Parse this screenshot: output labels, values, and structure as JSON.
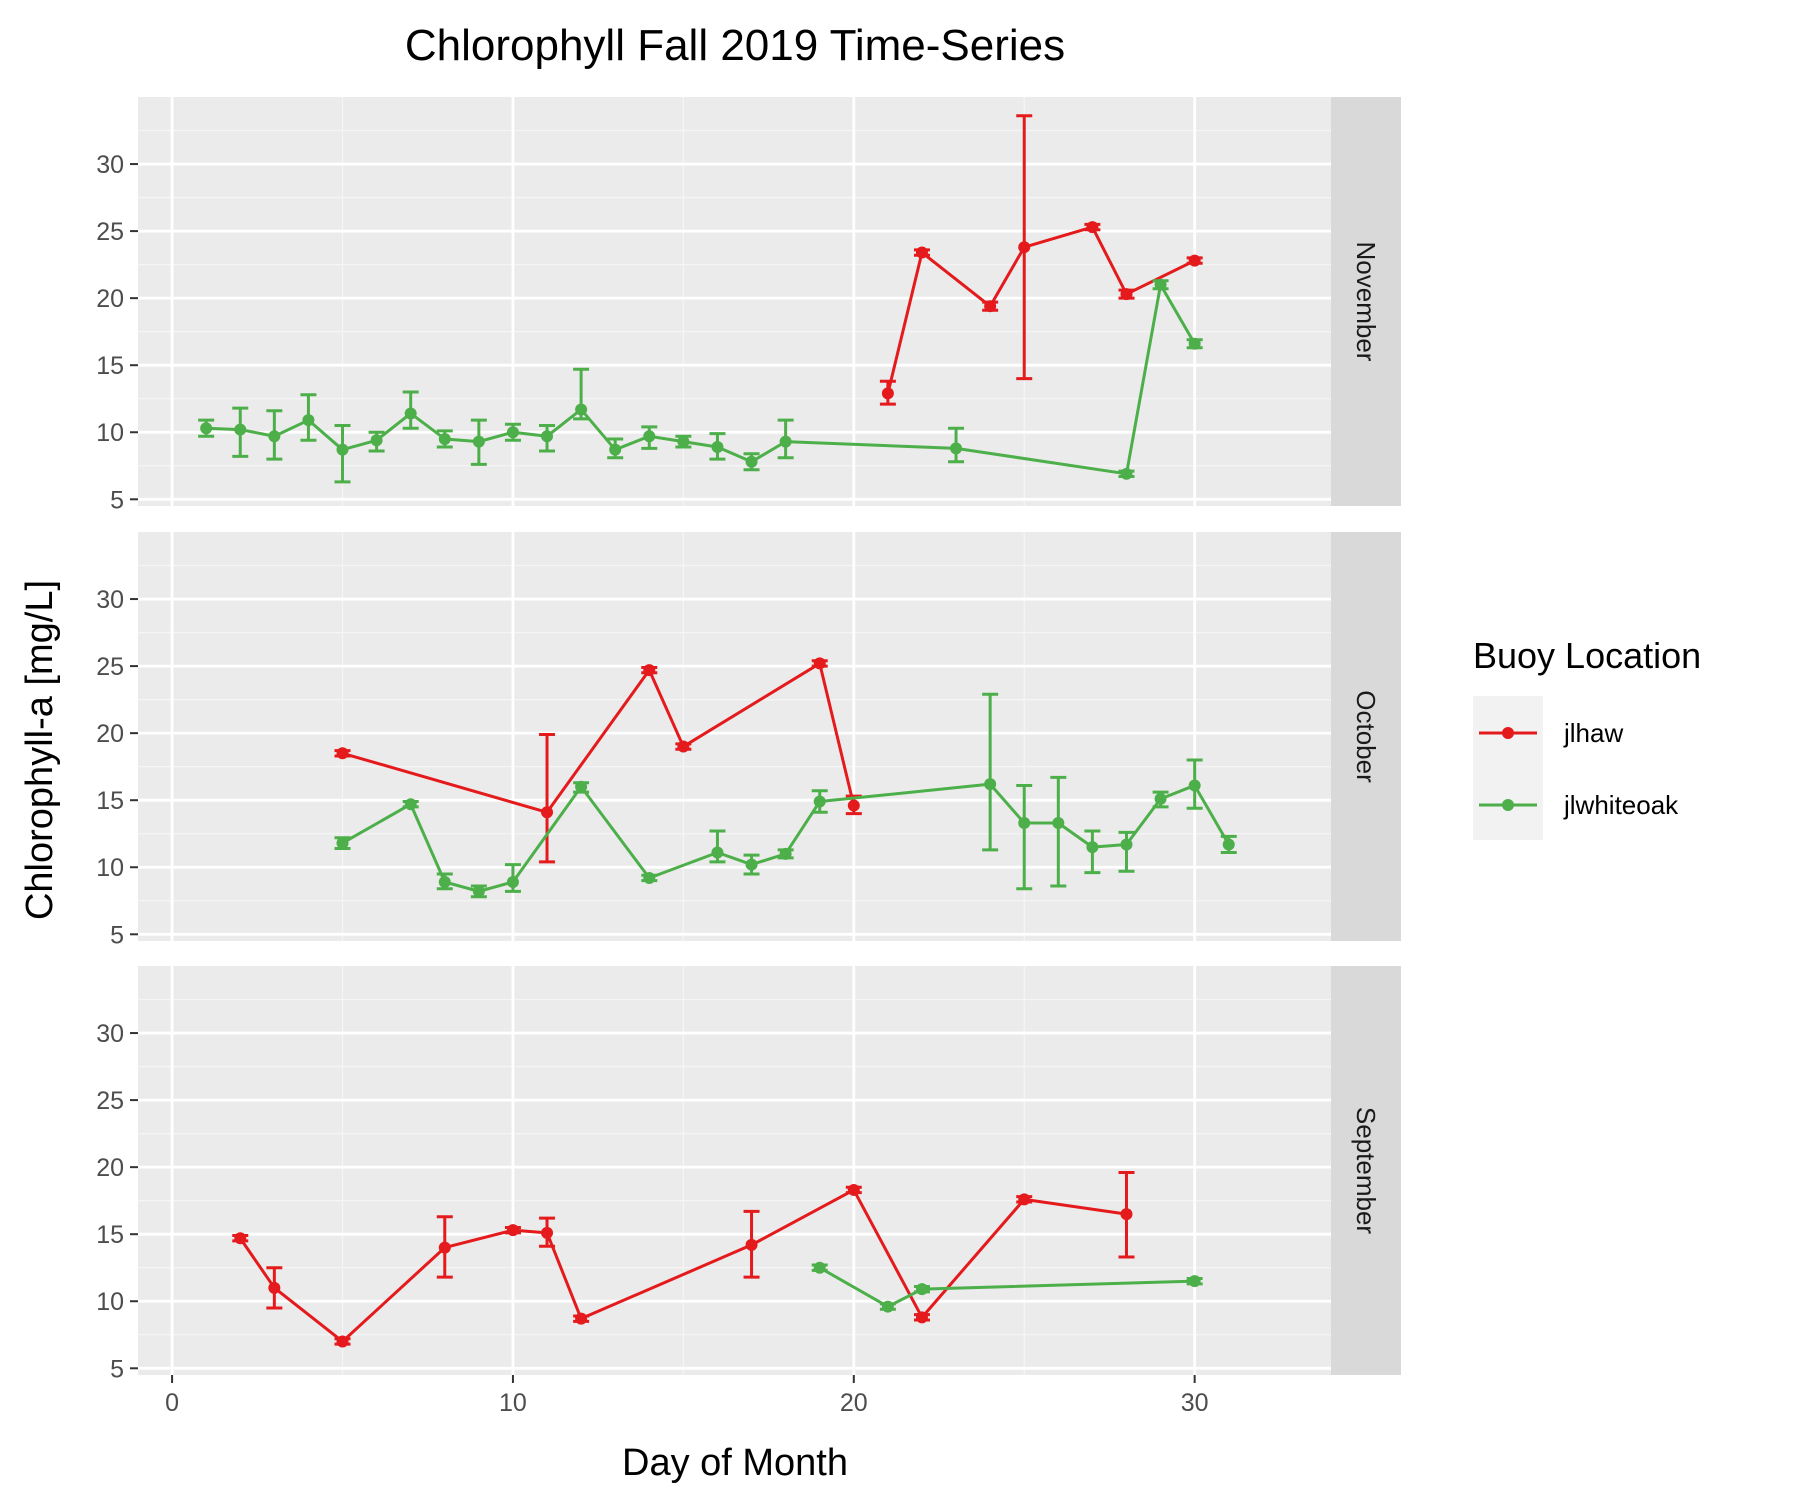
{
  "chart_data": {
    "type": "line",
    "title": "Chlorophyll Fall 2019 Time-Series",
    "xlabel": "Day of Month",
    "ylabel": "Chlorophyll-a [mg/L]",
    "xlim": [
      -1,
      34
    ],
    "ylim": [
      4.5,
      35
    ],
    "x_ticks": [
      0,
      10,
      20,
      30
    ],
    "y_ticks": [
      5,
      10,
      15,
      20,
      25,
      30
    ],
    "grid": true,
    "legend": {
      "title": "Buoy Location",
      "position": "right"
    },
    "series_meta": [
      {
        "name": "jlhaw",
        "color": "#e41a1c"
      },
      {
        "name": "jlwhiteoak",
        "color": "#4daf4a"
      }
    ],
    "panels": [
      {
        "label": "November",
        "series": [
          {
            "name": "jlhaw",
            "points": [
              {
                "x": 21,
                "y": 12.9,
                "lo": 12.1,
                "hi": 13.8
              },
              {
                "x": 22,
                "y": 23.4,
                "lo": 23.2,
                "hi": 23.6
              },
              {
                "x": 24,
                "y": 19.4,
                "lo": 19.1,
                "hi": 19.7
              },
              {
                "x": 25,
                "y": 23.8,
                "lo": 14.0,
                "hi": 33.6
              },
              {
                "x": 27,
                "y": 25.3,
                "lo": 25.1,
                "hi": 25.5
              },
              {
                "x": 28,
                "y": 20.3,
                "lo": 20.0,
                "hi": 20.6
              },
              {
                "x": 30,
                "y": 22.8,
                "lo": 22.6,
                "hi": 23.0
              }
            ]
          },
          {
            "name": "jlwhiteoak",
            "points": [
              {
                "x": 1,
                "y": 10.3,
                "lo": 9.7,
                "hi": 10.9
              },
              {
                "x": 2,
                "y": 10.2,
                "lo": 8.2,
                "hi": 11.8
              },
              {
                "x": 3,
                "y": 9.7,
                "lo": 8.0,
                "hi": 11.6
              },
              {
                "x": 4,
                "y": 10.9,
                "lo": 9.4,
                "hi": 12.8
              },
              {
                "x": 5,
                "y": 8.7,
                "lo": 6.3,
                "hi": 10.5
              },
              {
                "x": 6,
                "y": 9.4,
                "lo": 8.6,
                "hi": 10.0
              },
              {
                "x": 7,
                "y": 11.4,
                "lo": 10.3,
                "hi": 13.0
              },
              {
                "x": 8,
                "y": 9.5,
                "lo": 8.9,
                "hi": 10.1
              },
              {
                "x": 9,
                "y": 9.3,
                "lo": 7.6,
                "hi": 10.9
              },
              {
                "x": 10,
                "y": 10.0,
                "lo": 9.4,
                "hi": 10.6
              },
              {
                "x": 11,
                "y": 9.7,
                "lo": 8.6,
                "hi": 10.5
              },
              {
                "x": 12,
                "y": 11.7,
                "lo": 11.0,
                "hi": 14.7
              },
              {
                "x": 13,
                "y": 8.7,
                "lo": 8.1,
                "hi": 9.5
              },
              {
                "x": 14,
                "y": 9.7,
                "lo": 8.8,
                "hi": 10.4
              },
              {
                "x": 15,
                "y": 9.3,
                "lo": 8.9,
                "hi": 9.7
              },
              {
                "x": 16,
                "y": 8.9,
                "lo": 8.0,
                "hi": 9.9
              },
              {
                "x": 17,
                "y": 7.8,
                "lo": 7.2,
                "hi": 8.4
              },
              {
                "x": 18,
                "y": 9.3,
                "lo": 8.1,
                "hi": 10.9
              },
              {
                "x": 23,
                "y": 8.8,
                "lo": 7.8,
                "hi": 10.3
              },
              {
                "x": 28,
                "y": 6.9,
                "lo": 6.7,
                "hi": 7.1
              },
              {
                "x": 29,
                "y": 21.0,
                "lo": 20.7,
                "hi": 21.3
              },
              {
                "x": 30,
                "y": 16.6,
                "lo": 16.3,
                "hi": 16.9
              }
            ]
          }
        ]
      },
      {
        "label": "October",
        "series": [
          {
            "name": "jlhaw",
            "points": [
              {
                "x": 5,
                "y": 18.5,
                "lo": 18.3,
                "hi": 18.7
              },
              {
                "x": 11,
                "y": 14.1,
                "lo": 10.4,
                "hi": 19.9
              },
              {
                "x": 14,
                "y": 24.7,
                "lo": 24.5,
                "hi": 24.9
              },
              {
                "x": 15,
                "y": 19.0,
                "lo": 18.8,
                "hi": 19.2
              },
              {
                "x": 19,
                "y": 25.2,
                "lo": 25.0,
                "hi": 25.4
              },
              {
                "x": 20,
                "y": 14.6,
                "lo": 14.0,
                "hi": 15.3
              }
            ]
          },
          {
            "name": "jlwhiteoak",
            "points": [
              {
                "x": 5,
                "y": 11.8,
                "lo": 11.4,
                "hi": 12.2
              },
              {
                "x": 7,
                "y": 14.7,
                "lo": 14.5,
                "hi": 14.9
              },
              {
                "x": 8,
                "y": 8.9,
                "lo": 8.4,
                "hi": 9.5
              },
              {
                "x": 9,
                "y": 8.2,
                "lo": 7.8,
                "hi": 8.6
              },
              {
                "x": 10,
                "y": 8.9,
                "lo": 8.2,
                "hi": 10.2
              },
              {
                "x": 12,
                "y": 16.0,
                "lo": 15.6,
                "hi": 16.3
              },
              {
                "x": 14,
                "y": 9.2,
                "lo": 9.0,
                "hi": 9.4
              },
              {
                "x": 16,
                "y": 11.1,
                "lo": 10.4,
                "hi": 12.7
              },
              {
                "x": 17,
                "y": 10.2,
                "lo": 9.5,
                "hi": 10.9
              },
              {
                "x": 18,
                "y": 11.0,
                "lo": 10.7,
                "hi": 11.3
              },
              {
                "x": 19,
                "y": 14.9,
                "lo": 14.1,
                "hi": 15.7
              },
              {
                "x": 24,
                "y": 16.2,
                "lo": 11.3,
                "hi": 22.9
              },
              {
                "x": 25,
                "y": 13.3,
                "lo": 8.4,
                "hi": 16.1
              },
              {
                "x": 26,
                "y": 13.3,
                "lo": 8.6,
                "hi": 16.7
              },
              {
                "x": 27,
                "y": 11.5,
                "lo": 9.6,
                "hi": 12.7
              },
              {
                "x": 28,
                "y": 11.7,
                "lo": 9.7,
                "hi": 12.6
              },
              {
                "x": 29,
                "y": 15.1,
                "lo": 14.5,
                "hi": 15.6
              },
              {
                "x": 30,
                "y": 16.1,
                "lo": 14.4,
                "hi": 18.0
              },
              {
                "x": 31,
                "y": 11.7,
                "lo": 11.1,
                "hi": 12.3
              }
            ]
          }
        ]
      },
      {
        "label": "September",
        "series": [
          {
            "name": "jlhaw",
            "points": [
              {
                "x": 2,
                "y": 14.7,
                "lo": 14.5,
                "hi": 14.9
              },
              {
                "x": 3,
                "y": 11.0,
                "lo": 9.5,
                "hi": 12.5
              },
              {
                "x": 5,
                "y": 7.0,
                "lo": 6.8,
                "hi": 7.2
              },
              {
                "x": 8,
                "y": 14.0,
                "lo": 11.8,
                "hi": 16.3
              },
              {
                "x": 10,
                "y": 15.3,
                "lo": 15.1,
                "hi": 15.5
              },
              {
                "x": 11,
                "y": 15.1,
                "lo": 14.1,
                "hi": 16.2
              },
              {
                "x": 12,
                "y": 8.7,
                "lo": 8.5,
                "hi": 8.9
              },
              {
                "x": 17,
                "y": 14.2,
                "lo": 11.8,
                "hi": 16.7
              },
              {
                "x": 20,
                "y": 18.3,
                "lo": 18.1,
                "hi": 18.5
              },
              {
                "x": 22,
                "y": 8.8,
                "lo": 8.6,
                "hi": 9.0
              },
              {
                "x": 25,
                "y": 17.6,
                "lo": 17.4,
                "hi": 17.8
              },
              {
                "x": 28,
                "y": 16.5,
                "lo": 13.3,
                "hi": 19.6
              }
            ]
          },
          {
            "name": "jlwhiteoak",
            "points": [
              {
                "x": 19,
                "y": 12.5,
                "lo": 12.3,
                "hi": 12.7
              },
              {
                "x": 21,
                "y": 9.6,
                "lo": 9.4,
                "hi": 9.8
              },
              {
                "x": 22,
                "y": 10.9,
                "lo": 10.7,
                "hi": 11.1
              },
              {
                "x": 30,
                "y": 11.5,
                "lo": 11.3,
                "hi": 11.7
              }
            ]
          }
        ]
      }
    ]
  }
}
